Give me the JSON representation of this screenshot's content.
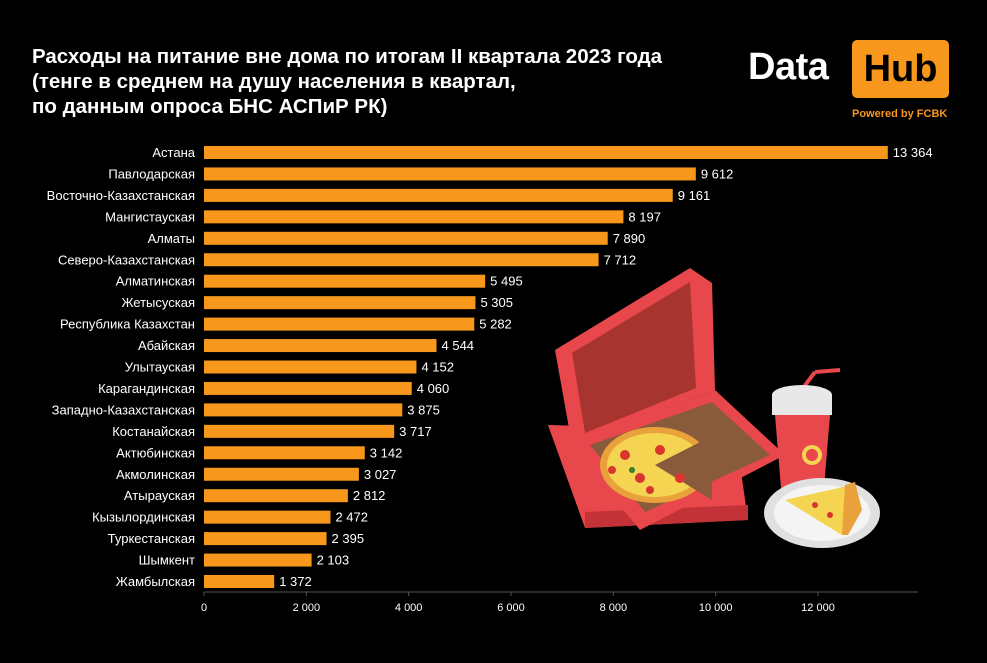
{
  "title_lines": [
    "Расходы на питание вне дома по итогам II квартала 2023 года",
    "(тенге в среднем на душу населения в квартал,",
    "по данным опроса БНС АСПиР РК)"
  ],
  "logo": {
    "data": "Data",
    "hub": "Hub",
    "powered": "Powered by FCBK"
  },
  "colors": {
    "bar": "#f7981d",
    "background": "#000000",
    "accent": "#f7981d"
  },
  "chart_data": {
    "type": "bar",
    "orientation": "horizontal",
    "categories": [
      "Астана",
      "Павлодарская",
      "Восточно-Казахстанская",
      "Мангистауская",
      "Алматы",
      "Северо-Казахстанская",
      "Алматинская",
      "Жетысуская",
      "Республика Казахстан",
      "Абайская",
      "Улытауская",
      "Карагандинская",
      "Западно-Казахстанская",
      "Костанайская",
      "Актюбинская",
      "Акмолинская",
      "Атырауская",
      "Кызылординская",
      "Туркестанская",
      "Шымкент",
      "Жамбылская"
    ],
    "values": [
      13364,
      9612,
      9161,
      8197,
      7890,
      7712,
      5495,
      5305,
      5282,
      4544,
      4152,
      4060,
      3875,
      3717,
      3142,
      3027,
      2812,
      2472,
      2395,
      2103,
      1372
    ],
    "value_labels": [
      "13 364",
      "9 612",
      "9 161",
      "8 197",
      "7 890",
      "7 712",
      "5 495",
      "5 305",
      "5 282",
      "4 544",
      "4 152",
      "4 060",
      "3 875",
      "3 717",
      "3 142",
      "3 027",
      "2 812",
      "2 472",
      "2 395",
      "2 103",
      "1 372"
    ],
    "xticks": [
      0,
      2000,
      4000,
      6000,
      8000,
      10000,
      12000
    ],
    "xtick_labels": [
      "0",
      "2 000",
      "4 000",
      "6 000",
      "8 000",
      "10 000",
      "12 000"
    ],
    "xlim": [
      0,
      14000
    ],
    "grid": false
  }
}
